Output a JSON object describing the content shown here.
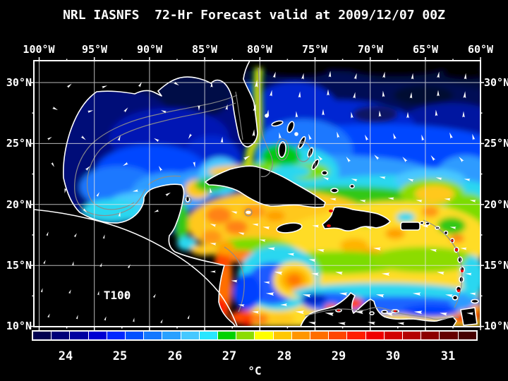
{
  "title": "NRL IASNFS  72-Hr Forecast valid at 2009/12/07 00Z",
  "axes": {
    "top_lon_labels": [
      "100°W",
      "95°W",
      "90°W",
      "85°W",
      "80°W",
      "75°W",
      "70°W",
      "65°W",
      "60°W"
    ],
    "left_lat_labels": [
      "30°N",
      "25°N",
      "20°N",
      "15°N",
      "10°N"
    ],
    "right_lat_labels": [
      "30°N",
      "25°N",
      "20°N",
      "15°N",
      "10°N"
    ]
  },
  "map": {
    "annotation": "T100"
  },
  "colorbar": {
    "unit": "°C",
    "tick_labels": [
      "24",
      "25",
      "26",
      "27",
      "28",
      "29",
      "30",
      "31"
    ],
    "range_min": 23.5,
    "range_max": 31.5,
    "segment_colors": [
      "#000050",
      "#000078",
      "#0000A0",
      "#0000D2",
      "#0028FF",
      "#0050FF",
      "#1478FF",
      "#28A0FF",
      "#46C8FF",
      "#28E6FF",
      "#00D200",
      "#8CDC00",
      "#FFFF00",
      "#FFC800",
      "#FF9600",
      "#FF6E00",
      "#FF4600",
      "#FF1E00",
      "#F00000",
      "#D20000",
      "#B40000",
      "#8C0000",
      "#640000",
      "#460000"
    ]
  }
}
